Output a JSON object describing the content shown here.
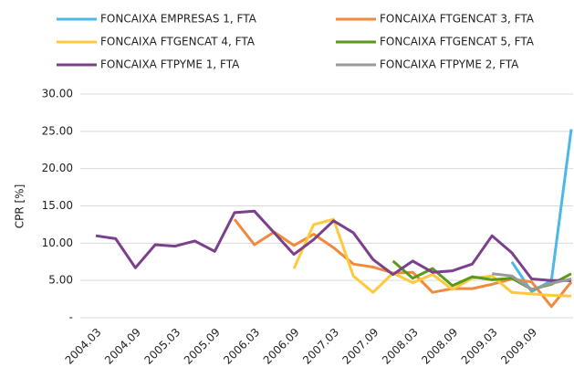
{
  "chart_data": {
    "type": "line",
    "ylabel": "CPR [%]",
    "categories": [
      "2004.03",
      null,
      "2004.09",
      null,
      "2005.03",
      null,
      "2005.09",
      null,
      "2006.03",
      null,
      "2006.09",
      null,
      "2007.03",
      null,
      "2007.09",
      null,
      "2008.03",
      null,
      "2008.09",
      null,
      "2009.03",
      null,
      "2009.09",
      null,
      null
    ],
    "series": [
      {
        "name": "FONCAIXA EMPRESAS 1, FTA",
        "color": "#4db8e8",
        "values": [
          null,
          null,
          null,
          null,
          null,
          null,
          null,
          null,
          null,
          null,
          null,
          null,
          null,
          null,
          null,
          null,
          null,
          null,
          null,
          null,
          null,
          7.5,
          3.5,
          5.0,
          25.3
        ]
      },
      {
        "name": "FONCAIXA FTGENCAT 3, FTA",
        "color": "#f08a3c",
        "values": [
          null,
          null,
          null,
          null,
          null,
          null,
          null,
          13.2,
          9.8,
          11.5,
          9.7,
          11.2,
          9.4,
          7.2,
          6.8,
          6.0,
          6.1,
          3.4,
          3.9,
          3.9,
          4.5,
          5.2,
          4.8,
          1.5,
          4.8
        ]
      },
      {
        "name": "FONCAIXA FTGENCAT 4, FTA",
        "color": "#ffc83d",
        "values": [
          null,
          null,
          null,
          null,
          null,
          null,
          null,
          null,
          null,
          null,
          6.6,
          12.5,
          13.2,
          5.6,
          3.4,
          6.0,
          4.7,
          5.8,
          3.8,
          5.3,
          5.6,
          3.4,
          3.2,
          3.0,
          2.9
        ]
      },
      {
        "name": "FONCAIXA FTGENCAT 5, FTA",
        "color": "#5a9a1a",
        "values": [
          null,
          null,
          null,
          null,
          null,
          null,
          null,
          null,
          null,
          null,
          null,
          null,
          null,
          null,
          null,
          7.6,
          5.3,
          6.6,
          4.3,
          5.5,
          5.1,
          5.3,
          3.8,
          4.5,
          5.9
        ]
      },
      {
        "name": "FONCAIXA FTPYME 1, FTA",
        "color": "#7b3f8c",
        "values": [
          11.0,
          10.6,
          6.7,
          9.8,
          9.6,
          10.3,
          8.9,
          14.1,
          14.3,
          11.4,
          8.5,
          10.5,
          13.0,
          11.4,
          7.8,
          5.8,
          7.6,
          6.1,
          6.3,
          7.2,
          11.0,
          8.7,
          5.2,
          5.0,
          5.0
        ]
      },
      {
        "name": "FONCAIXA FTPYME 2, FTA",
        "color": "#9a9a9a",
        "values": [
          null,
          null,
          null,
          null,
          null,
          null,
          null,
          null,
          null,
          null,
          null,
          null,
          null,
          null,
          null,
          null,
          null,
          null,
          null,
          null,
          5.9,
          5.6,
          3.8,
          4.6,
          5.2
        ]
      }
    ],
    "ylim": [
      0,
      30
    ],
    "yticks": [
      {
        "value": 0,
        "label": "-"
      },
      {
        "value": 5,
        "label": "5.00"
      },
      {
        "value": 10,
        "label": "10.00"
      },
      {
        "value": 15,
        "label": "15.00"
      },
      {
        "value": 20,
        "label": "20.00"
      },
      {
        "value": 25,
        "label": "25.00"
      },
      {
        "value": 30,
        "label": "30.00"
      }
    ],
    "grid": true,
    "legend": "top"
  }
}
